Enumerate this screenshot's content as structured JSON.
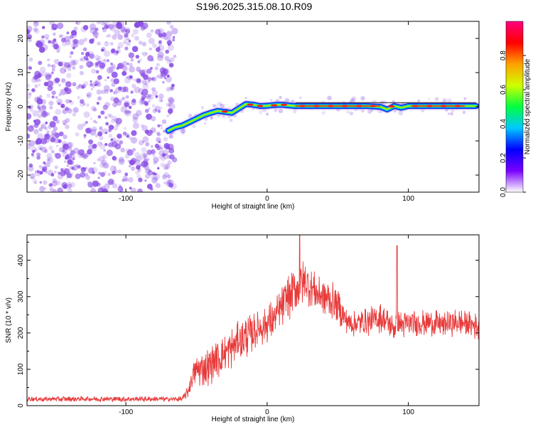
{
  "title": "S196.2025.315.08.10.R09",
  "colors": {
    "noise": "#8a4ee6",
    "trace_edge": "#0a2ce8",
    "snr_line": "#e83a3a",
    "axes": "#000000"
  },
  "chart_data": [
    {
      "type": "heatmap",
      "xlabel": "Height of straight line (km)",
      "ylabel": "Frequency (Hz)",
      "xlim": [
        -170,
        150
      ],
      "ylim": [
        -25,
        25
      ],
      "xticks": [
        -100,
        0,
        100
      ],
      "xtick_labels": [
        "-100",
        "0",
        "100"
      ],
      "yticks": [
        -20,
        -10,
        0,
        10,
        20
      ],
      "ytick_labels": [
        "-20",
        "-10",
        "0",
        "10",
        "20"
      ],
      "noise_region": {
        "x_range": [
          -170,
          -65
        ],
        "y_range": [
          -25,
          25
        ]
      },
      "trace": {
        "height_km": [
          -70,
          -65,
          -60,
          -55,
          -50,
          -45,
          -40,
          -35,
          -30,
          -25,
          -20,
          -15,
          -10,
          -5,
          0,
          5,
          10,
          15,
          20,
          30,
          40,
          50,
          60,
          70,
          80,
          85,
          90,
          95,
          100,
          110,
          120,
          130,
          140,
          148
        ],
        "frequency_hz": [
          -7,
          -6,
          -5.5,
          -4.5,
          -3.5,
          -2.5,
          -1.8,
          -1.2,
          -1.5,
          -1.8,
          -0.5,
          0.8,
          0.6,
          0.2,
          0.3,
          0.5,
          0.6,
          0.4,
          0.2,
          0.2,
          0.2,
          0.2,
          0.2,
          0.2,
          0.0,
          -0.8,
          0.2,
          -0.3,
          0.2,
          0.2,
          0.2,
          0.2,
          0.2,
          0.2
        ]
      },
      "colorbar": {
        "label": "Normalized spectral amplitude",
        "range": [
          0,
          1
        ],
        "ticks": [
          0,
          0.2,
          0.4,
          0.6,
          0.8
        ],
        "tick_labels": [
          "0.0",
          "0.2",
          "0.4",
          "0.6",
          "0.8"
        ],
        "colormap": [
          "#ffffff",
          "#7a00ff",
          "#0000ff",
          "#00c8ff",
          "#00ff40",
          "#d0ff00",
          "#ffa000",
          "#ff0000",
          "#ff0080"
        ]
      }
    },
    {
      "type": "line",
      "xlabel": "Height of straight line (km)",
      "ylabel": "SNR (10 * v/v)",
      "xlim": [
        -170,
        150
      ],
      "ylim": [
        0,
        470
      ],
      "xticks": [
        -100,
        0,
        100
      ],
      "xtick_labels": [
        "-100",
        "0",
        "100"
      ],
      "yticks": [
        0,
        100,
        200,
        300,
        400
      ],
      "ytick_labels": [
        "0",
        "100",
        "200",
        "300",
        "400"
      ],
      "series": [
        {
          "name": "SNR",
          "x": [
            -170,
            -150,
            -130,
            -110,
            -90,
            -70,
            -60,
            -56,
            -52,
            -48,
            -44,
            -40,
            -35,
            -30,
            -25,
            -20,
            -15,
            -10,
            -5,
            0,
            5,
            10,
            15,
            20,
            25,
            30,
            35,
            40,
            45,
            50,
            55,
            60,
            70,
            80,
            85,
            90,
            92,
            95,
            100,
            110,
            120,
            130,
            140,
            150
          ],
          "baseline": [
            18,
            18,
            19,
            18,
            18,
            18,
            18,
            40,
            90,
            100,
            105,
            110,
            130,
            145,
            160,
            180,
            190,
            200,
            215,
            225,
            240,
            265,
            300,
            320,
            340,
            330,
            310,
            300,
            290,
            280,
            240,
            225,
            230,
            240,
            230,
            210,
            240,
            220,
            225,
            230,
            225,
            225,
            230,
            215
          ],
          "amplitude": [
            8,
            8,
            8,
            8,
            8,
            8,
            8,
            20,
            40,
            50,
            55,
            55,
            60,
            60,
            60,
            60,
            60,
            55,
            55,
            55,
            60,
            60,
            70,
            80,
            70,
            60,
            55,
            60,
            55,
            50,
            45,
            40,
            40,
            45,
            40,
            40,
            45,
            40,
            40,
            40,
            40,
            40,
            40,
            40
          ]
        }
      ]
    }
  ]
}
